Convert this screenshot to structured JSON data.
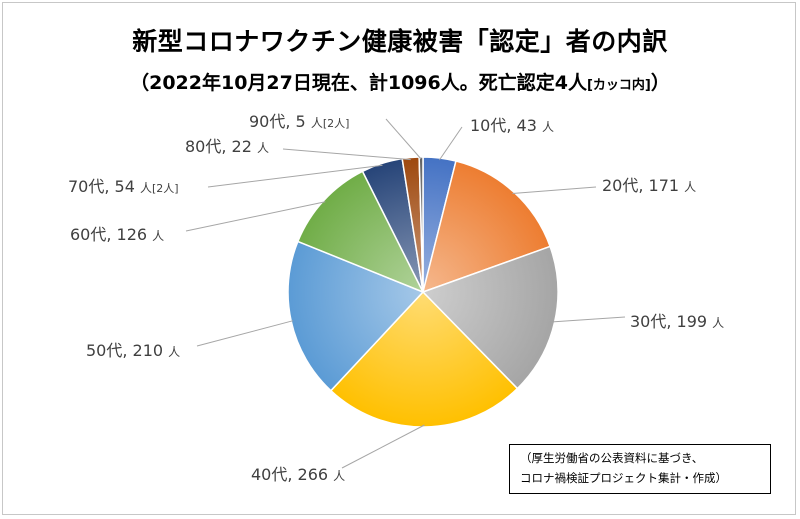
{
  "chart_data": {
    "type": "pie",
    "title": "新型コロナワクチン健康被害「認定」者の内訳",
    "subtitle_main": "（2022年10月27日現在、計1096人。死亡認定4人",
    "subtitle_small": "[カッコ内]",
    "subtitle_close": "）",
    "categories": [
      "10代",
      "20代",
      "30代",
      "40代",
      "50代",
      "60代",
      "70代",
      "80代",
      "90代"
    ],
    "values": [
      43,
      171,
      199,
      266,
      210,
      126,
      54,
      22,
      5
    ],
    "deaths": [
      null,
      null,
      null,
      null,
      null,
      null,
      "[2人]",
      null,
      "[2人]"
    ],
    "unit": "人",
    "colors": [
      "#4472c4",
      "#ed7d31",
      "#a5a5a5",
      "#ffc000",
      "#5b9bd5",
      "#70ad47",
      "#264478",
      "#9e480e",
      "#636363"
    ]
  },
  "note": {
    "line1": "（厚生労働省の公表資料に基づき、",
    "line2": "コロナ禍検証プロジェクト集計・作成）"
  }
}
